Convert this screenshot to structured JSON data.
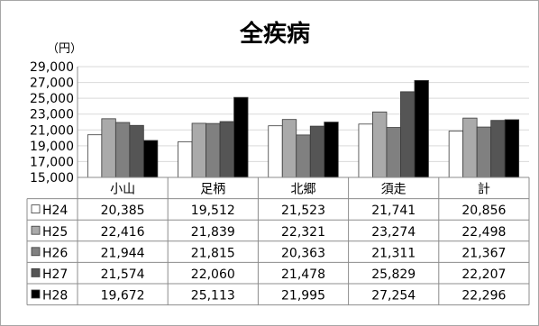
{
  "chart_data": {
    "type": "bar",
    "title": "全疾病",
    "unit_label": "（円）",
    "categories": [
      "小山",
      "足柄",
      "北郷",
      "須走",
      "計"
    ],
    "ylim": [
      15000,
      29000
    ],
    "yticks": [
      "15,000",
      "17,000",
      "19,000",
      "21,000",
      "23,000",
      "25,000",
      "27,000",
      "29,000"
    ],
    "grid": true,
    "legend": "data-table",
    "series": [
      {
        "name": "H24",
        "color": "#ffffff",
        "values": [
          20385,
          19512,
          21523,
          21741,
          20856
        ],
        "labels": [
          "20,385",
          "19,512",
          "21,523",
          "21,741",
          "20,856"
        ]
      },
      {
        "name": "H25",
        "color": "#aaaaaa",
        "values": [
          22416,
          21839,
          22321,
          23274,
          22498
        ],
        "labels": [
          "22,416",
          "21,839",
          "22,321",
          "23,274",
          "22,498"
        ]
      },
      {
        "name": "H26",
        "color": "#808080",
        "values": [
          21944,
          21815,
          20363,
          21311,
          21367
        ],
        "labels": [
          "21,944",
          "21,815",
          "20,363",
          "21,311",
          "21,367"
        ]
      },
      {
        "name": "H27",
        "color": "#555555",
        "values": [
          21574,
          22060,
          21478,
          25829,
          22207
        ],
        "labels": [
          "21,574",
          "22,060",
          "21,478",
          "25,829",
          "22,207"
        ]
      },
      {
        "name": "H28",
        "color": "#000000",
        "values": [
          19672,
          25113,
          21995,
          27254,
          22296
        ],
        "labels": [
          "19,672",
          "25,113",
          "21,995",
          "27,254",
          "22,296"
        ]
      }
    ]
  }
}
